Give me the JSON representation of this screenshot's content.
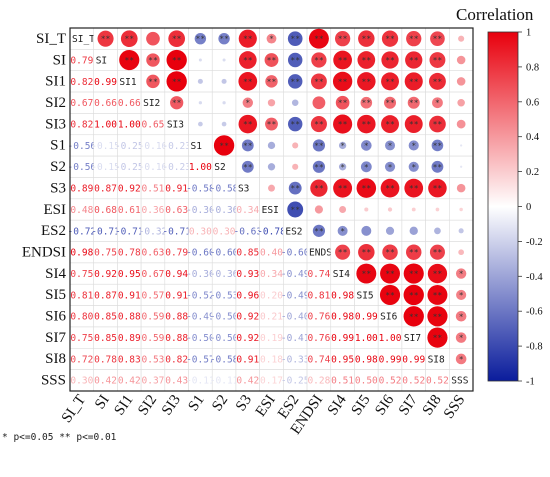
{
  "chart_data": {
    "type": "heatmap",
    "variables": [
      "SI_T",
      "SI",
      "SI1",
      "SI2",
      "SI3",
      "S1",
      "S2",
      "S3",
      "ESI",
      "ES2",
      "ENDSI",
      "SI4",
      "SI5",
      "SI6",
      "SI7",
      "SI8",
      "SSS"
    ],
    "lower_triangle_values": [
      [],
      [
        0.79
      ],
      [
        0.82,
        0.99
      ],
      [
        0.67,
        0.66,
        0.66
      ],
      [
        0.82,
        1.0,
        1.0,
        0.65
      ],
      [
        -0.56,
        -0.15,
        -0.25,
        -0.16,
        -0.23
      ],
      [
        -0.56,
        -0.15,
        -0.25,
        -0.16,
        -0.23,
        1.0
      ],
      [
        0.89,
        0.87,
        0.92,
        0.51,
        0.91,
        -0.58,
        -0.58
      ],
      [
        0.48,
        0.68,
        0.61,
        0.36,
        0.63,
        -0.36,
        -0.36,
        0.34
      ],
      [
        -0.72,
        -0.71,
        -0.71,
        -0.32,
        -0.71,
        0.3,
        0.3,
        -0.63,
        -0.78
      ],
      [
        0.98,
        0.75,
        0.78,
        0.63,
        0.79,
        -0.6,
        -0.6,
        0.85,
        0.4,
        -0.6
      ],
      [
        0.75,
        0.92,
        0.95,
        0.67,
        0.94,
        -0.36,
        -0.36,
        0.93,
        0.34,
        -0.49,
        0.74
      ],
      [
        0.81,
        0.87,
        0.91,
        0.57,
        0.91,
        -0.52,
        -0.53,
        0.96,
        0.2,
        -0.49,
        0.81,
        0.98
      ],
      [
        0.8,
        0.85,
        0.88,
        0.59,
        0.88,
        -0.49,
        -0.5,
        0.92,
        0.21,
        -0.4,
        0.76,
        0.98,
        0.99
      ],
      [
        0.75,
        0.85,
        0.89,
        0.59,
        0.88,
        -0.5,
        -0.5,
        0.92,
        0.19,
        -0.41,
        0.76,
        0.99,
        1.0,
        1.0
      ],
      [
        0.72,
        0.78,
        0.83,
        0.53,
        0.82,
        -0.57,
        -0.58,
        0.91,
        0.18,
        -0.33,
        0.74,
        0.95,
        0.98,
        0.99,
        0.99
      ],
      [
        0.3,
        0.42,
        0.42,
        0.37,
        0.43,
        -0.11,
        -0.11,
        0.42,
        0.17,
        -0.25,
        0.28,
        0.51,
        0.5,
        0.52,
        0.52,
        0.52
      ]
    ],
    "upper_significance": [
      [
        "",
        "**",
        "**",
        "",
        "**",
        "**",
        "**",
        "**",
        "*",
        "**",
        "**",
        "**",
        "**",
        "**",
        "**",
        "**",
        ""
      ],
      [
        "",
        "",
        "**",
        "**",
        "**",
        "",
        "",
        "**",
        "**",
        "**",
        "**",
        "**",
        "**",
        "**",
        "**",
        "**",
        ""
      ],
      [
        "",
        "",
        "",
        "**",
        "**",
        "",
        "",
        "**",
        "**",
        "**",
        "**",
        "**",
        "**",
        "**",
        "**",
        "**",
        ""
      ],
      [
        "",
        "",
        "",
        "",
        "**",
        "",
        "",
        "*",
        "",
        "",
        "",
        "**",
        "**",
        "**",
        "**",
        "*",
        ""
      ],
      [
        "",
        "",
        "",
        "",
        "",
        "",
        "",
        "**",
        "**",
        "**",
        "**",
        "**",
        "**",
        "**",
        "**",
        "**",
        ""
      ],
      [
        "",
        "",
        "",
        "",
        "",
        "",
        "**",
        "**",
        "",
        "",
        "**",
        "*",
        "*",
        "*",
        "*",
        "**",
        ""
      ],
      [
        "",
        "",
        "",
        "",
        "",
        "",
        "",
        "**",
        "",
        "",
        "**",
        "*",
        "*",
        "*",
        "*",
        "**",
        ""
      ],
      [
        "",
        "",
        "",
        "",
        "",
        "",
        "",
        "",
        "",
        "**",
        "**",
        "**",
        "**",
        "**",
        "**",
        "**",
        ""
      ],
      [
        "",
        "",
        "",
        "",
        "",
        "",
        "",
        "",
        "",
        "**",
        "",
        "",
        "",
        "",
        "",
        "",
        ""
      ],
      [
        "",
        "",
        "",
        "",
        "",
        "",
        "",
        "",
        "",
        "",
        "**",
        "*",
        "",
        "",
        "",
        "",
        ""
      ],
      [
        "",
        "",
        "",
        "",
        "",
        "",
        "",
        "",
        "",
        "",
        "",
        "**",
        "**",
        "**",
        "**",
        "**",
        ""
      ],
      [
        "",
        "",
        "",
        "",
        "",
        "",
        "",
        "",
        "",
        "",
        "",
        "",
        "**",
        "**",
        "**",
        "**",
        "*"
      ],
      [
        "",
        "",
        "",
        "",
        "",
        "",
        "",
        "",
        "",
        "",
        "",
        "",
        "",
        "**",
        "**",
        "**",
        "*"
      ],
      [
        "",
        "",
        "",
        "",
        "",
        "",
        "",
        "",
        "",
        "",
        "",
        "",
        "",
        "",
        "**",
        "**",
        "*"
      ],
      [
        "",
        "",
        "",
        "",
        "",
        "",
        "",
        "",
        "",
        "",
        "",
        "",
        "",
        "",
        "",
        "**",
        "*"
      ],
      [
        "",
        "",
        "",
        "",
        "",
        "",
        "",
        "",
        "",
        "",
        "",
        "",
        "",
        "",
        "",
        "",
        "*"
      ],
      [
        "",
        "",
        "",
        "",
        "",
        "",
        "",
        "",
        "",
        "",
        "",
        "",
        "",
        "",
        "",
        "",
        ""
      ]
    ],
    "colorbar": {
      "title": "Correlation",
      "ticks": [
        "1",
        "0.8",
        "0.6",
        "0.4",
        "0.2",
        "0",
        "-0.2",
        "-0.4",
        "-0.6",
        "-0.8",
        "-1"
      ],
      "range": [
        -1,
        1
      ],
      "colors": {
        "positive": "#e8000d",
        "zero": "#ffffff",
        "negative": "#0a1c9c"
      }
    },
    "grid": true,
    "significance_note": "* p<=0.05  ** p<=0.01",
    "legend_position": "right"
  }
}
